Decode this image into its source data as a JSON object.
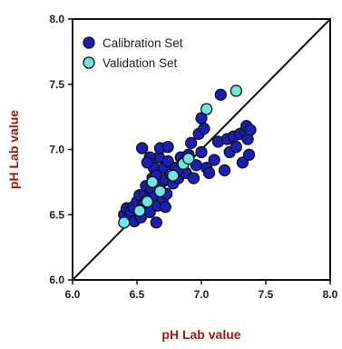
{
  "chart_data": {
    "type": "scatter",
    "title": "",
    "xlabel": "pH Lab value",
    "ylabel": "pH Lab value",
    "xlim": [
      6.0,
      8.0
    ],
    "ylim": [
      6.0,
      8.0
    ],
    "xticks": [
      "6.0",
      "6.5",
      "7.0",
      "7.5",
      "8.0"
    ],
    "yticks": [
      "6.0",
      "6.5",
      "7.0",
      "7.5",
      "8.0"
    ],
    "grid": false,
    "legend_position": "top-left",
    "reference_line": {
      "x": [
        6.0,
        8.0
      ],
      "y": [
        6.0,
        8.0
      ]
    },
    "series": [
      {
        "name": "Calibration Set",
        "color": "#1a1fb8",
        "points": [
          [
            6.4,
            6.5
          ],
          [
            6.42,
            6.55
          ],
          [
            6.44,
            6.48
          ],
          [
            6.45,
            6.53
          ],
          [
            6.47,
            6.56
          ],
          [
            6.48,
            6.45
          ],
          [
            6.5,
            6.6
          ],
          [
            6.52,
            6.65
          ],
          [
            6.53,
            6.48
          ],
          [
            6.55,
            6.58
          ],
          [
            6.56,
            6.66
          ],
          [
            6.57,
            6.72
          ],
          [
            6.58,
            6.62
          ],
          [
            6.6,
            6.52
          ],
          [
            6.61,
            6.7
          ],
          [
            6.62,
            6.78
          ],
          [
            6.63,
            6.86
          ],
          [
            6.64,
            6.64
          ],
          [
            6.65,
            6.8
          ],
          [
            6.66,
            6.57
          ],
          [
            6.67,
            6.94
          ],
          [
            6.68,
            6.73
          ],
          [
            6.7,
            6.62
          ],
          [
            6.71,
            6.86
          ],
          [
            6.72,
            6.77
          ],
          [
            6.73,
            6.66
          ],
          [
            6.74,
            6.91
          ],
          [
            6.76,
            6.81
          ],
          [
            6.78,
            6.74
          ],
          [
            6.8,
            6.86
          ],
          [
            6.82,
            6.78
          ],
          [
            6.84,
            6.94
          ],
          [
            6.86,
            6.9
          ],
          [
            6.88,
            6.82
          ],
          [
            6.9,
            6.96
          ],
          [
            6.92,
            7.05
          ],
          [
            6.94,
            6.78
          ],
          [
            6.96,
            6.88
          ],
          [
            6.98,
            7.12
          ],
          [
            7.0,
            6.98
          ],
          [
            7.02,
            7.16
          ],
          [
            7.04,
            6.86
          ],
          [
            7.06,
            6.82
          ],
          [
            7.1,
            6.92
          ],
          [
            7.13,
            7.06
          ],
          [
            7.15,
            7.42
          ],
          [
            7.18,
            6.84
          ],
          [
            7.2,
            7.08
          ],
          [
            7.22,
            6.98
          ],
          [
            7.25,
            7.1
          ],
          [
            7.27,
            7.02
          ],
          [
            7.3,
            7.12
          ],
          [
            7.32,
            6.9
          ],
          [
            7.34,
            7.14
          ],
          [
            7.35,
            7.18
          ],
          [
            7.36,
            7.08
          ],
          [
            7.37,
            6.96
          ],
          [
            7.38,
            7.15
          ],
          [
            6.54,
            7.01
          ],
          [
            6.6,
            6.94
          ],
          [
            6.68,
            7.01
          ],
          [
            6.74,
            7.02
          ],
          [
            6.82,
            6.84
          ],
          [
            7.0,
            7.24
          ],
          [
            6.58,
            6.9
          ],
          [
            6.65,
            6.44
          ],
          [
            6.72,
            6.56
          ]
        ]
      },
      {
        "name": "Validation Set",
        "color": "#6ce8e2",
        "points": [
          [
            6.4,
            6.44
          ],
          [
            6.52,
            6.53
          ],
          [
            6.58,
            6.6
          ],
          [
            6.62,
            6.75
          ],
          [
            6.68,
            6.68
          ],
          [
            6.78,
            6.8
          ],
          [
            6.86,
            6.89
          ],
          [
            6.9,
            6.93
          ],
          [
            7.04,
            7.31
          ],
          [
            7.27,
            7.45
          ]
        ]
      }
    ]
  }
}
